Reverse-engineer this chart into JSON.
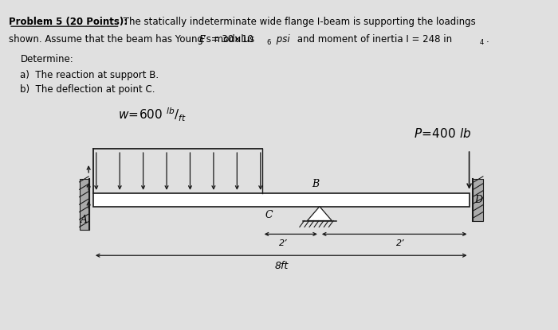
{
  "bg_color": "#e0e0e0",
  "title_underline": "Problem 5 (20 Points):",
  "title_text": " The statically indeterminate wide flange I-beam is supporting the loadings",
  "line2": "shown. Assume that the beam has Young’s modulus ",
  "line2_E": "E",
  "line2_eq": " = 30×10",
  "line2_exp": "6",
  "line2_psi": " psi",
  "line2_rest": " and moment of inertia I = 248 in",
  "line2_exp4": "4",
  "line2_dot": ".",
  "determine": "Determine:",
  "item_a": "a)  The reaction at support B.",
  "item_b": "b)  The deflection at point C.",
  "dim_8ft": "8ft",
  "dim_2left": "2’",
  "dim_2right": "2’",
  "label_A": "A",
  "label_B": "B",
  "label_C": "C",
  "label_D": "D",
  "beam_color": "#1a1a1a"
}
